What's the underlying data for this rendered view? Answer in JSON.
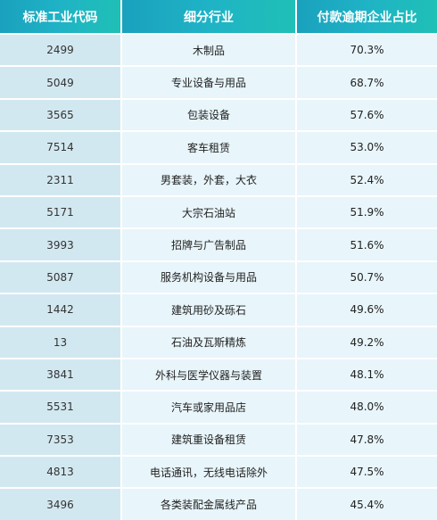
{
  "table": {
    "headers": [
      "标准工业代码",
      "细分行业",
      "付款逾期企业占比"
    ],
    "rows": [
      [
        "2499",
        "木制品",
        "70.3%"
      ],
      [
        "5049",
        "专业设备与用品",
        "68.7%"
      ],
      [
        "3565",
        "包装设备",
        "57.6%"
      ],
      [
        "7514",
        "客车租赁",
        "53.0%"
      ],
      [
        "2311",
        "男套装，外套，大衣",
        "52.4%"
      ],
      [
        "5171",
        "大宗石油站",
        "51.9%"
      ],
      [
        "3993",
        "招牌与广告制品",
        "51.6%"
      ],
      [
        "5087",
        "服务机构设备与用品",
        "50.7%"
      ],
      [
        "1442",
        "建筑用砂及砾石",
        "49.6%"
      ],
      [
        "13",
        "石油及瓦斯精炼",
        "49.2%"
      ],
      [
        "3841",
        "外科与医学仪器与装置",
        "48.1%"
      ],
      [
        "5531",
        "汽车或家用品店",
        "48.0%"
      ],
      [
        "7353",
        "建筑重设备租赁",
        "47.8%"
      ],
      [
        "4813",
        "电话通讯，无线电话除外",
        "47.5%"
      ],
      [
        "3496",
        "各类装配金属线产品",
        "45.4%"
      ]
    ]
  }
}
